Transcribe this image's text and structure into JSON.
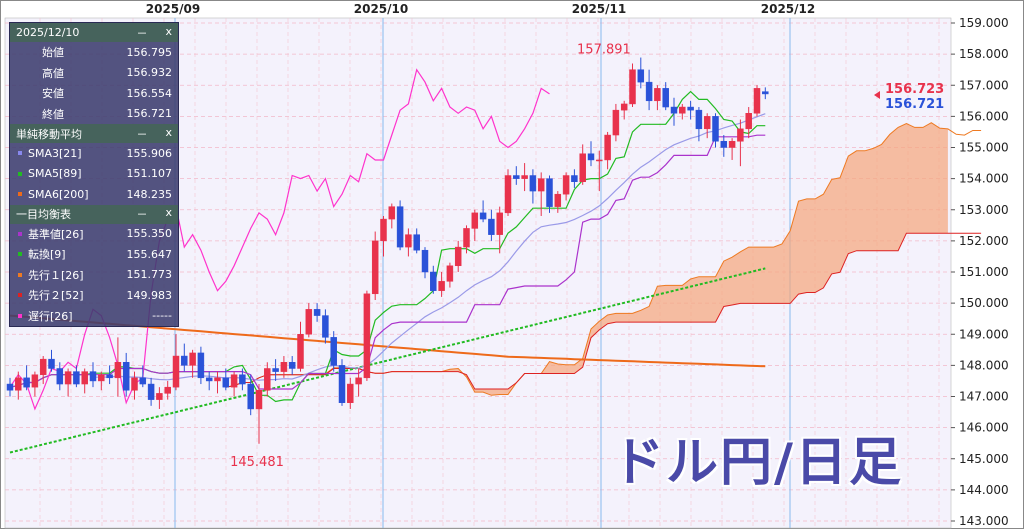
{
  "title": "ドル円/日足",
  "colors": {
    "up": "#e8324c",
    "down": "#2a52d8",
    "sma3": "#9a9ae8",
    "sma5": "#22bb22",
    "sma6": "#ee6a1a",
    "kijun": "#aa33cc",
    "tenkan": "#22bb22",
    "senkou1": "#ee7a22",
    "senkou2": "#dd2222",
    "chikou": "#ff33cc",
    "cloud": "#f5a57a",
    "cloud_alt": "#d8d8e0",
    "price_up": "#e8324c",
    "price_down": "#2a52d8"
  },
  "legend": {
    "date": "2025/12/10",
    "minimize": "－",
    "close": "x",
    "ohlc": [
      {
        "label": "始値",
        "value": "156.795"
      },
      {
        "label": "高値",
        "value": "156.932"
      },
      {
        "label": "安値",
        "value": "156.554"
      },
      {
        "label": "終値",
        "value": "156.721"
      }
    ],
    "sma_title": "単純移動平均",
    "sma": [
      {
        "label": "SMA3[21]",
        "value": "155.906",
        "color": "#8888ee"
      },
      {
        "label": "SMA5[89]",
        "value": "151.107",
        "color": "#22bb22"
      },
      {
        "label": "SMA6[200]",
        "value": "148.235",
        "color": "#ee6a1a"
      }
    ],
    "ichimoku_title": "一目均衡表",
    "ichimoku": [
      {
        "label": "基準値[26]",
        "value": "155.350",
        "color": "#aa33cc"
      },
      {
        "label": "転換[9]",
        "value": "155.647",
        "color": "#22bb22"
      },
      {
        "label": "先行１[26]",
        "value": "151.773",
        "color": "#ee7a22"
      },
      {
        "label": "先行２[52]",
        "value": "149.983",
        "color": "#dd2222"
      },
      {
        "label": "遅行[26]",
        "value": "-----",
        "color": "#ff33cc"
      }
    ]
  },
  "chart_data": {
    "type": "candlestick",
    "x_labels": [
      "2025/09",
      "2025/10",
      "2025/11",
      "2025/12"
    ],
    "y_ticks": [
      "143.000",
      "144.000",
      "145.000",
      "146.000",
      "147.000",
      "148.000",
      "149.000",
      "150.000",
      "151.000",
      "152.000",
      "153.000",
      "154.000",
      "155.000",
      "156.000",
      "157.000",
      "158.000",
      "159.000"
    ],
    "ylim": [
      143.0,
      159.0
    ],
    "annotations": [
      {
        "text": "157.891",
        "value": 157.891
      },
      {
        "text": "145.481",
        "value": 145.481
      }
    ],
    "price_tags": [
      {
        "text": "156.723",
        "value": 156.723
      },
      {
        "text": "156.721",
        "value": 156.721
      }
    ],
    "candles": [
      [
        147.4,
        147.6,
        147.0,
        147.2
      ],
      [
        147.2,
        147.8,
        146.9,
        147.6
      ],
      [
        147.6,
        148.0,
        147.2,
        147.3
      ],
      [
        147.3,
        147.8,
        147.0,
        147.7
      ],
      [
        147.7,
        148.3,
        147.4,
        148.2
      ],
      [
        148.2,
        148.5,
        147.8,
        147.9
      ],
      [
        147.9,
        148.1,
        147.2,
        147.4
      ],
      [
        147.4,
        147.9,
        147.0,
        147.8
      ],
      [
        147.8,
        148.0,
        147.3,
        147.4
      ],
      [
        147.4,
        147.9,
        147.1,
        147.8
      ],
      [
        147.8,
        148.1,
        147.3,
        147.5
      ],
      [
        147.5,
        147.8,
        147.2,
        147.7
      ],
      [
        147.7,
        148.0,
        147.4,
        147.6
      ],
      [
        147.6,
        148.9,
        147.0,
        148.1
      ],
      [
        148.1,
        148.4,
        147.0,
        147.2
      ],
      [
        147.2,
        147.8,
        146.9,
        147.6
      ],
      [
        147.6,
        148.0,
        147.3,
        147.4
      ],
      [
        147.4,
        147.6,
        146.7,
        146.9
      ],
      [
        146.9,
        147.3,
        146.6,
        147.1
      ],
      [
        147.1,
        147.5,
        146.9,
        147.3
      ],
      [
        147.3,
        149.0,
        147.2,
        148.3
      ],
      [
        148.3,
        148.7,
        147.8,
        148.0
      ],
      [
        148.0,
        148.5,
        147.6,
        148.4
      ],
      [
        148.4,
        148.6,
        147.4,
        147.6
      ],
      [
        147.6,
        147.8,
        147.2,
        147.5
      ],
      [
        147.5,
        147.8,
        147.1,
        147.6
      ],
      [
        147.6,
        147.9,
        147.2,
        147.3
      ],
      [
        147.3,
        147.8,
        147.0,
        147.7
      ],
      [
        147.7,
        147.9,
        147.2,
        147.4
      ],
      [
        147.4,
        147.7,
        146.4,
        146.6
      ],
      [
        146.6,
        147.4,
        145.48,
        147.2
      ],
      [
        147.2,
        148.1,
        147.0,
        147.9
      ],
      [
        147.9,
        148.2,
        147.5,
        147.8
      ],
      [
        147.8,
        148.3,
        147.6,
        148.1
      ],
      [
        148.1,
        148.3,
        147.7,
        147.9
      ],
      [
        147.9,
        149.4,
        147.8,
        149.0
      ],
      [
        149.0,
        150.0,
        148.9,
        149.8
      ],
      [
        149.8,
        150.0,
        149.4,
        149.6
      ],
      [
        149.6,
        149.8,
        148.7,
        148.9
      ],
      [
        148.9,
        149.1,
        147.8,
        148.0
      ],
      [
        148.0,
        148.2,
        146.7,
        146.8
      ],
      [
        146.8,
        147.6,
        146.6,
        147.4
      ],
      [
        147.4,
        147.9,
        147.0,
        147.6
      ],
      [
        147.6,
        150.4,
        147.5,
        150.3
      ],
      [
        150.3,
        152.3,
        150.1,
        152.0
      ],
      [
        152.0,
        152.8,
        151.5,
        152.7
      ],
      [
        152.7,
        153.2,
        152.4,
        153.1
      ],
      [
        153.1,
        153.3,
        151.7,
        151.8
      ],
      [
        151.8,
        152.4,
        151.5,
        152.2
      ],
      [
        152.2,
        152.4,
        151.6,
        151.7
      ],
      [
        151.7,
        151.8,
        150.8,
        151.0
      ],
      [
        151.0,
        151.2,
        150.3,
        150.4
      ],
      [
        150.4,
        151.0,
        150.2,
        150.7
      ],
      [
        150.7,
        151.3,
        150.5,
        151.2
      ],
      [
        151.2,
        152.0,
        151.0,
        151.8
      ],
      [
        151.8,
        152.5,
        151.6,
        152.4
      ],
      [
        152.4,
        153.0,
        152.0,
        152.9
      ],
      [
        152.9,
        153.3,
        152.6,
        152.7
      ],
      [
        152.7,
        153.0,
        152.0,
        152.2
      ],
      [
        152.2,
        153.1,
        151.6,
        152.9
      ],
      [
        152.9,
        154.3,
        152.8,
        154.1
      ],
      [
        154.1,
        154.4,
        153.8,
        154.0
      ],
      [
        154.0,
        154.5,
        153.6,
        154.1
      ],
      [
        154.1,
        154.3,
        153.2,
        153.6
      ],
      [
        153.6,
        154.2,
        152.8,
        154.0
      ],
      [
        154.0,
        154.1,
        152.9,
        153.1
      ],
      [
        153.1,
        153.6,
        152.9,
        153.5
      ],
      [
        153.5,
        154.2,
        153.3,
        154.1
      ],
      [
        154.1,
        154.3,
        153.7,
        153.9
      ],
      [
        153.9,
        155.1,
        153.8,
        154.8
      ],
      [
        154.8,
        155.2,
        154.4,
        154.6
      ],
      [
        154.6,
        154.9,
        153.6,
        154.6
      ],
      [
        154.6,
        155.5,
        154.3,
        155.4
      ],
      [
        155.4,
        156.4,
        155.2,
        156.2
      ],
      [
        156.2,
        156.5,
        155.9,
        156.4
      ],
      [
        156.4,
        157.7,
        156.3,
        157.5
      ],
      [
        157.5,
        157.89,
        156.9,
        157.1
      ],
      [
        157.1,
        157.5,
        156.2,
        156.5
      ],
      [
        156.5,
        157.0,
        156.2,
        156.9
      ],
      [
        156.9,
        157.1,
        156.2,
        156.3
      ],
      [
        156.3,
        156.6,
        155.7,
        156.1
      ],
      [
        156.1,
        156.4,
        155.9,
        156.3
      ],
      [
        156.3,
        156.5,
        155.9,
        156.2
      ],
      [
        156.2,
        156.3,
        155.2,
        155.6
      ],
      [
        155.6,
        156.1,
        155.3,
        156.0
      ],
      [
        156.0,
        156.1,
        155.0,
        155.2
      ],
      [
        155.2,
        155.4,
        154.7,
        155.0
      ],
      [
        155.0,
        155.3,
        154.6,
        155.2
      ],
      [
        155.2,
        155.9,
        154.4,
        155.6
      ],
      [
        155.6,
        156.3,
        155.3,
        156.1
      ],
      [
        156.1,
        157.0,
        156.0,
        156.9
      ],
      [
        156.795,
        156.932,
        156.554,
        156.721
      ]
    ]
  }
}
